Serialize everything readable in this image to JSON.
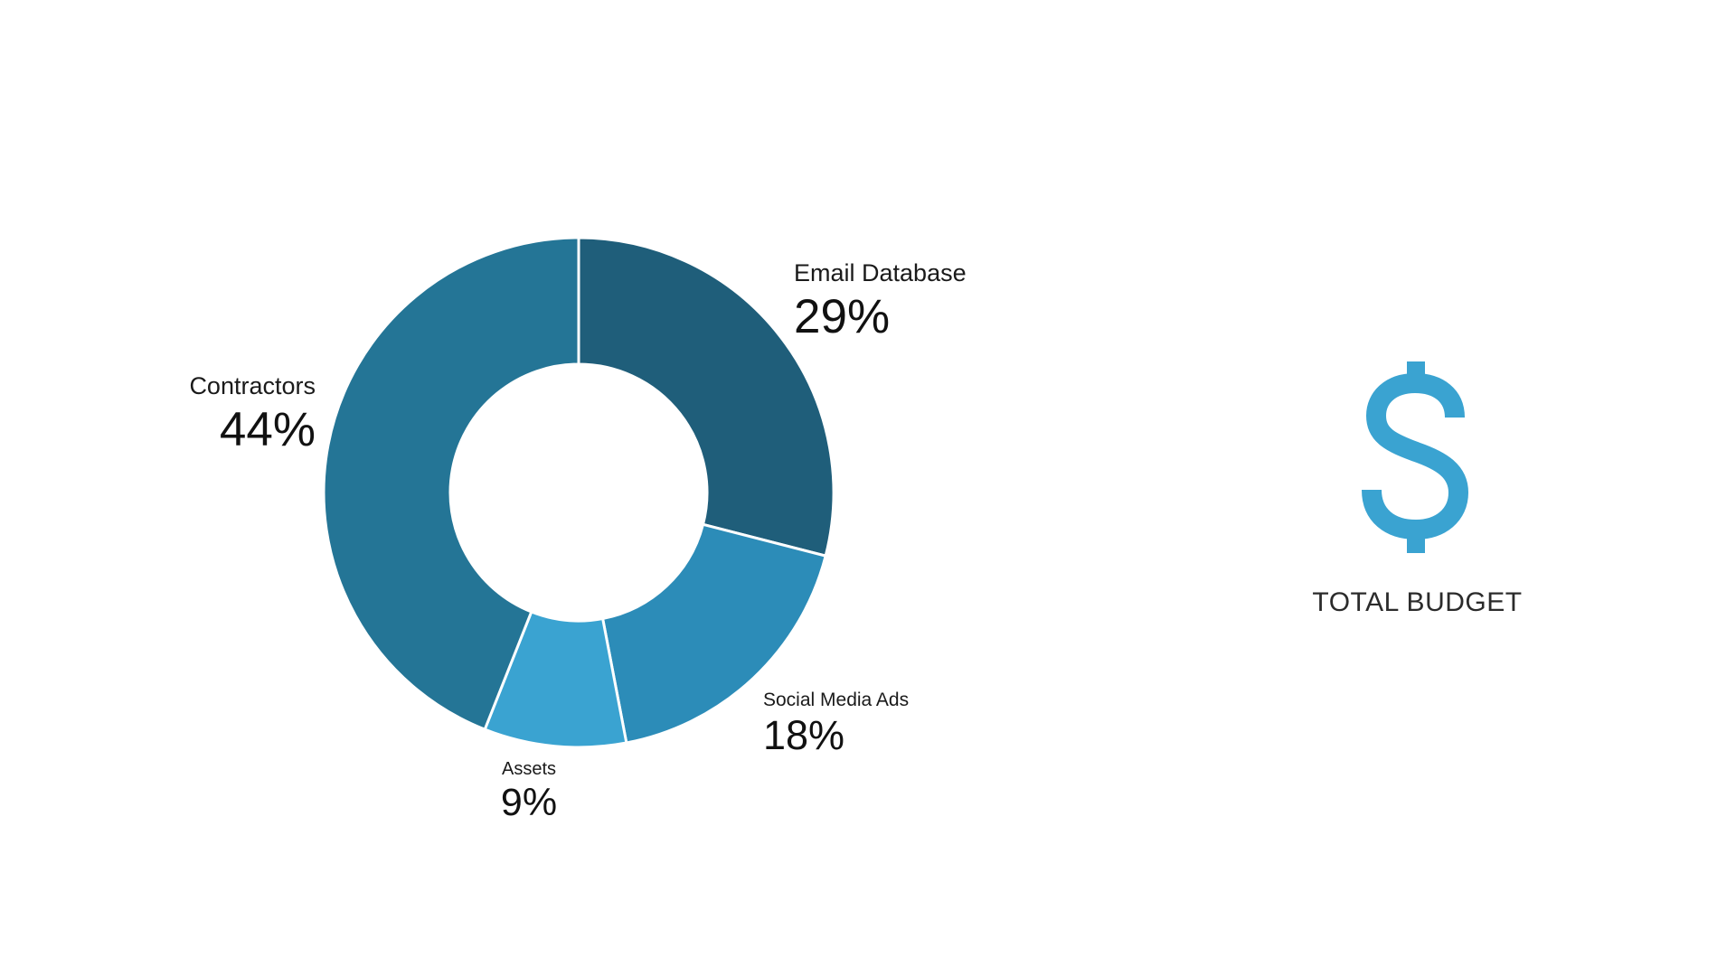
{
  "chart_data": {
    "type": "pie",
    "donut": true,
    "title": "",
    "slices": [
      {
        "label": "Email Database",
        "value": 29,
        "display": "29%",
        "color": "#1f5e7a"
      },
      {
        "label": "Social Media Ads",
        "value": 18,
        "display": "18%",
        "color": "#2c8cb8"
      },
      {
        "label": "Assets",
        "value": 9,
        "display": "9%",
        "color": "#3aa3d1"
      },
      {
        "label": "Contractors",
        "value": 44,
        "display": "44%",
        "color": "#247596"
      }
    ],
    "legend": "none"
  },
  "budget": {
    "icon": "dollar-icon",
    "icon_color": "#3aa3d1",
    "title": "TOTAL BUDGET"
  }
}
